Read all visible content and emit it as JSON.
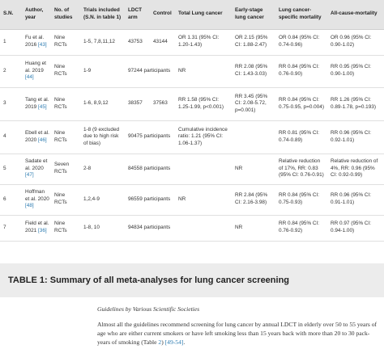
{
  "table": {
    "headers": [
      "S.N.",
      "Author, year",
      "No. of studies",
      "Trials included (S.N. in table 1)",
      "LDCT arm",
      "Control",
      "Total Lung cancer",
      "Early-stage lung cancer",
      "Lung cancer-specific mortality",
      "All-cause-mortality"
    ],
    "rows": [
      {
        "sn": "1",
        "author": "Fu et al. 2016",
        "ref": "[43]",
        "studies": "Nine RCTs",
        "trials": "1-5, 7,8,11,12",
        "ldct": "43753",
        "control": "43144",
        "total": "OR 1.31 (95% CI: 1.20-1.43)",
        "early": "OR 2.15 (95% CI: 1.88-2.47)",
        "lcsm": "OR 0.84 (95% CI: 0.74-0.96)",
        "acm": "OR 0.96 (95% CI: 0.90-1.02)"
      },
      {
        "sn": "2",
        "author": "Huang et al. 2019",
        "ref": "[44]",
        "studies": "Nine RCTs",
        "trials": "1-9",
        "ldct": "97244 participants",
        "control": "",
        "total": "NR",
        "early": "RR 2.08 (95% CI: 1.43-3.03)",
        "lcsm": "RR 0.84 (95% CI: 0.76-0.90)",
        "acm": "RR 0.95 (95% CI: 0.90-1.00)"
      },
      {
        "sn": "3",
        "author": "Tang et al. 2019",
        "ref": "[45]",
        "studies": "Nine RCTs",
        "trials": "1-6, 8,9,12",
        "ldct": "38357",
        "control": "37563",
        "total": "RR 1.58 (95% CI: 1.25-1.99, p<0.001)",
        "early": "RR 3.45 (95% CI: 2.08-5.72, p=0.001)",
        "lcsm": "RR 0.84 (95% CI: 0.75-0.95, p=0.004)",
        "acm": "RR 1.26 (95% CI: 0.89-1.78, p=0.193)"
      },
      {
        "sn": "4",
        "author": "Ebell et al. 2020",
        "ref": "[46]",
        "studies": "Nine RCTs",
        "trials": "1-8 (9 excluded due to high risk of bias)",
        "ldct": "90475 participants",
        "control": "",
        "total": "Cumulative incidence ratio: 1.21 (95% CI: 1.06-1.37)",
        "early": "",
        "lcsm": "RR 0.81 (95% CI: 0.74-0.89)",
        "acm": "RR 0.96 (95% CI: 0.92-1.01)"
      },
      {
        "sn": "5",
        "author": "Sadate et al. 2020",
        "ref": "[47]",
        "studies": "Seven RCTs",
        "trials": "2-8",
        "ldct": "84558 participants",
        "control": "",
        "total": "",
        "early": "NR",
        "lcsm": "Relative reduction of 17%, RR: 0.83 (95% CI: 0.76-0.91)",
        "acm": "Relative reduction of 4%, RR: 0.96 (95% CI: 0.92-0.99)"
      },
      {
        "sn": "6",
        "author": "Hoffman et al. 2020",
        "ref": "[48]",
        "studies": "Nine RCTs",
        "trials": "1,2,4-9",
        "ldct": "96559 participants",
        "control": "",
        "total": "NR",
        "early": "RR 2.84 (95% CI: 2.16-3.98)",
        "lcsm": "RR 0.84 (95% CI: 0.75-0.93)",
        "acm": "RR 0.96 (95% CI: 0.91-1.01)"
      },
      {
        "sn": "7",
        "author": "Field et al. 2021",
        "ref": "[36]",
        "studies": "Nine RCTs",
        "trials": "1-8, 10",
        "ldct": "94834 participants",
        "control": "",
        "total": "",
        "early": "NR",
        "lcsm": "RR 0.84 (95% CI: 0.76-0.92)",
        "acm": "RR 0.97 (95% CI: 0.94-1.00)"
      }
    ]
  },
  "caption": "TABLE 1: Summary of all meta-analyses for lung cancer screening",
  "section": {
    "heading": "Guidelines by Various Scientific Societies",
    "para_text": "Almost all the guidelines recommend screening for lung cancer by annual LDCT in elderly over 50 to 55 years of age who are either current smokers or have left smoking less than 15 years back with more than 20 to 30 pack-years of smoking (Table ",
    "table_link": "2",
    "refs_link": "[49-54]",
    "para_end": "."
  },
  "colors": {
    "header_bg": "#e4e4e4",
    "caption_bg": "#ececec",
    "link": "#2a7ab0"
  }
}
